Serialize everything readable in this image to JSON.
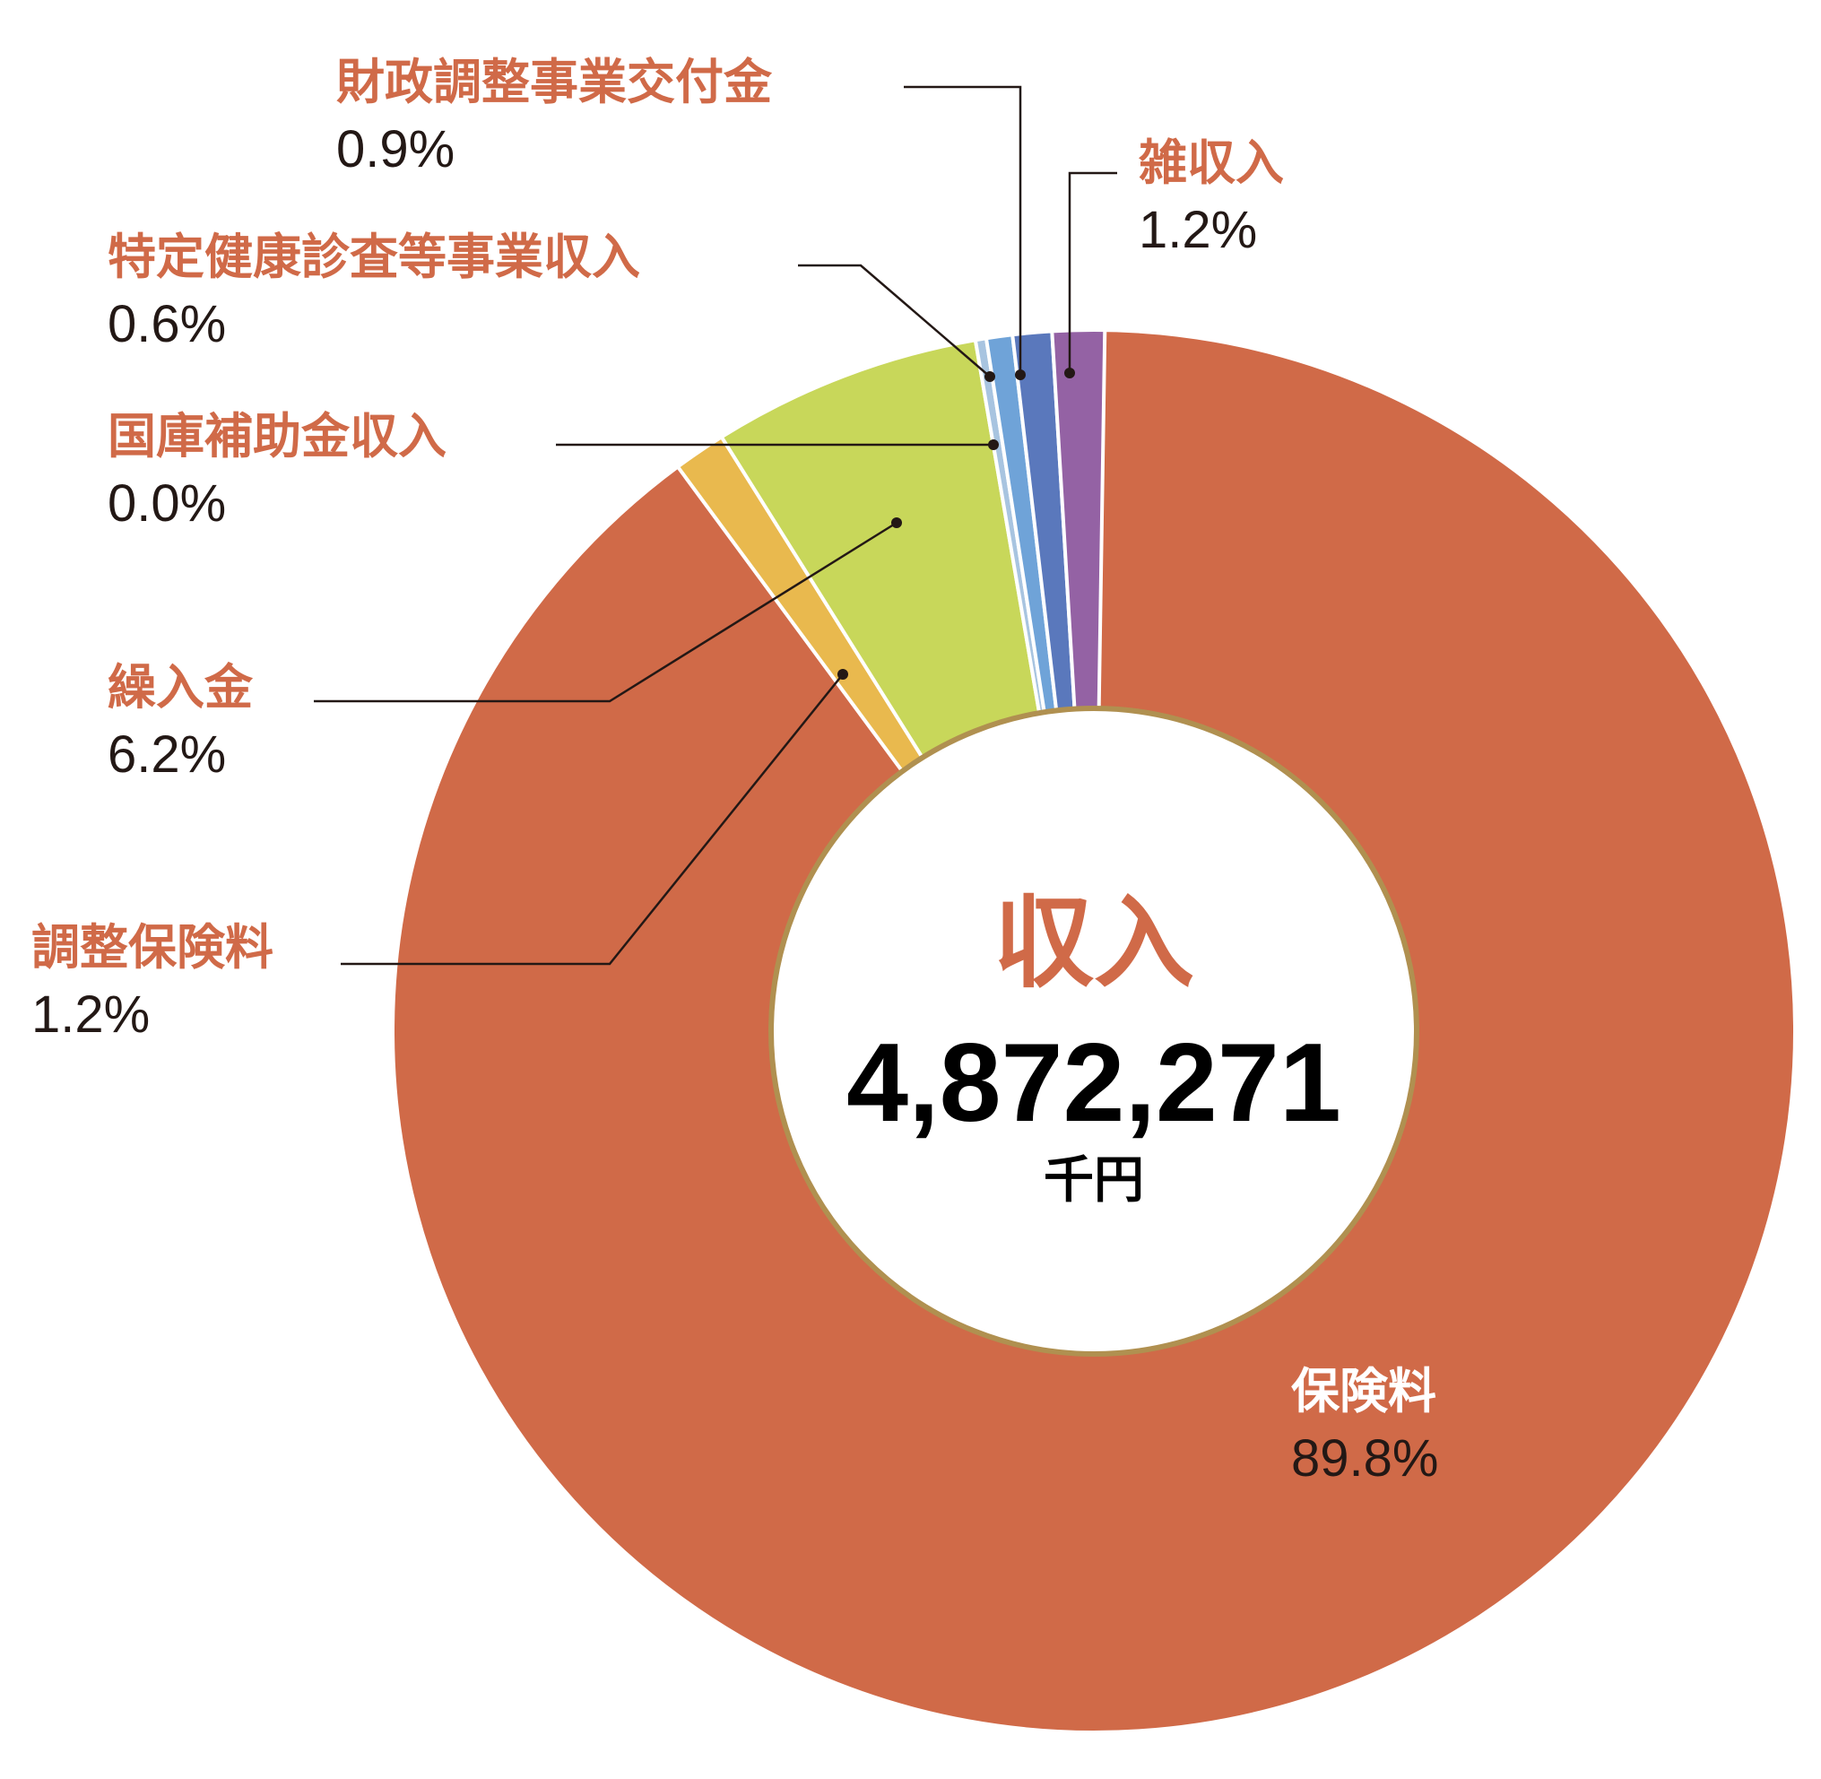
{
  "chart_data": {
    "type": "pie",
    "variant": "donut",
    "center": {
      "title": "収入",
      "total": "4,872,271",
      "unit": "千円"
    },
    "slices": [
      {
        "key": "hokenryo",
        "label": "保険料",
        "value": 89.8,
        "pct_text": "89.8%",
        "color": "#d06a48"
      },
      {
        "key": "chosei",
        "label": "調整保険料",
        "value": 1.2,
        "pct_text": "1.2%",
        "color": "#e9b94e"
      },
      {
        "key": "kuriire",
        "label": "繰入金",
        "value": 6.2,
        "pct_text": "6.2%",
        "color": "#c8d75a"
      },
      {
        "key": "kokko",
        "label": "国庫補助金収入",
        "value": 0.0,
        "pct_text": "0.0%",
        "color": "#a8c4e0"
      },
      {
        "key": "tokutei",
        "label": "特定健康診査等事業収入",
        "value": 0.6,
        "pct_text": "0.6%",
        "color": "#6fa3d8"
      },
      {
        "key": "zaisei",
        "label": "財政調整事業交付金",
        "value": 0.9,
        "pct_text": "0.9%",
        "color": "#5a78bc"
      },
      {
        "key": "zatsu",
        "label": "雑収入",
        "value": 1.2,
        "pct_text": "1.2%",
        "color": "#9462a4"
      }
    ],
    "inner_ring_color": "#b09050"
  }
}
